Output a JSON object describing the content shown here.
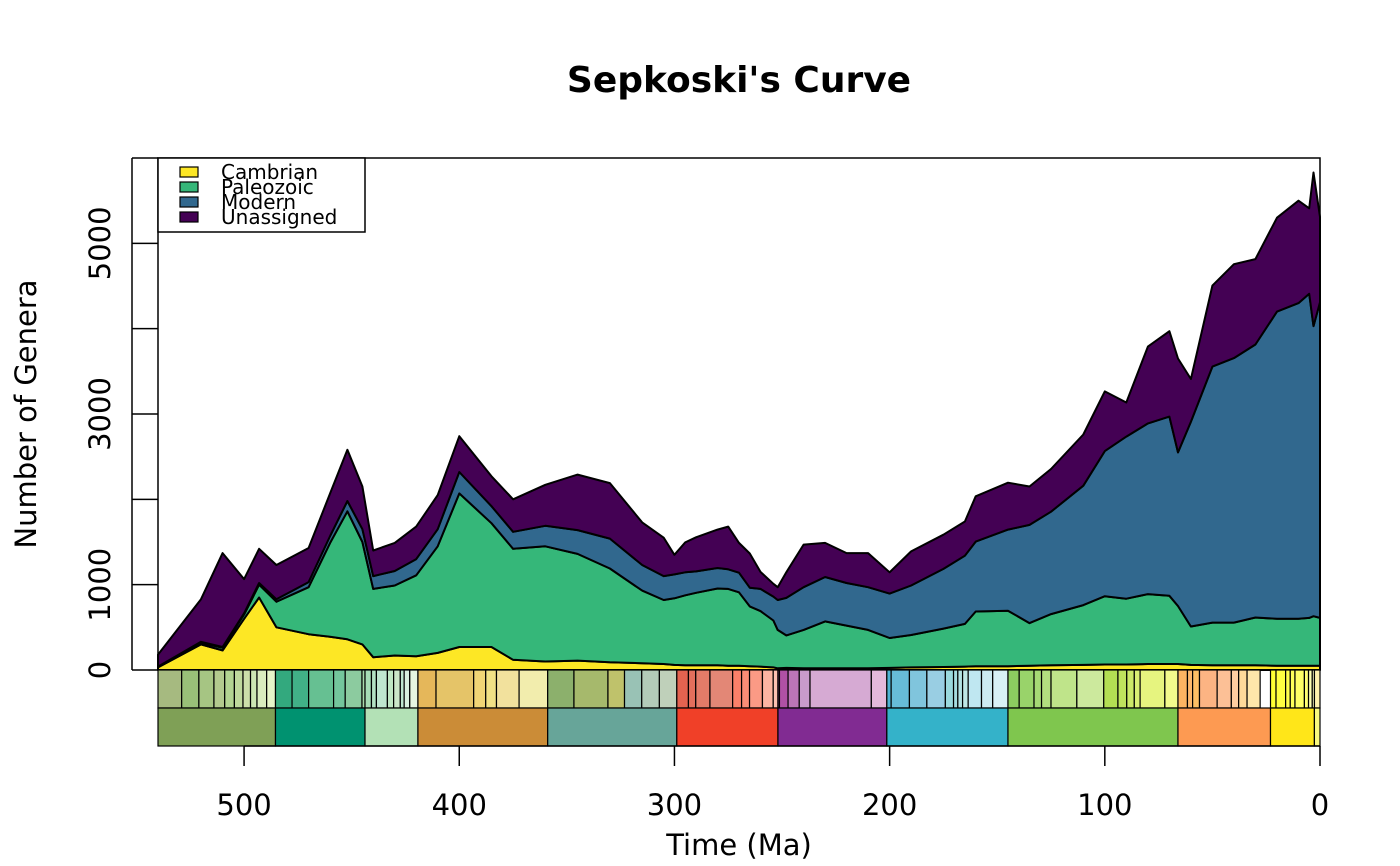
{
  "chart_data": {
    "type": "area",
    "stacked": true,
    "title": "Sepkoski's Curve",
    "xlabel": "Time (Ma)",
    "ylabel": "Number of Genera",
    "xlim": [
      540,
      0
    ],
    "ylim": [
      0,
      6000
    ],
    "x_ticks": [
      "500",
      "400",
      "300",
      "200",
      "100",
      "0"
    ],
    "y_ticks": [
      "0",
      "1000",
      "3000",
      "5000"
    ],
    "grid": false,
    "legend_position": "top-left",
    "x": [
      540,
      520,
      510,
      500,
      493,
      485,
      470,
      460,
      452,
      445,
      440,
      430,
      420,
      410,
      400,
      385,
      375,
      360,
      345,
      330,
      315,
      305,
      300,
      295,
      290,
      280,
      275,
      270,
      265,
      260,
      254,
      252,
      248,
      240,
      230,
      220,
      210,
      200,
      190,
      175,
      165,
      160,
      145,
      135,
      125,
      110,
      100,
      90,
      80,
      70,
      66,
      60,
      50,
      40,
      30,
      20,
      10,
      5,
      3,
      0
    ],
    "series": [
      {
        "name": "Cambrian",
        "color": "#fde725",
        "values": [
          30,
          300,
          230,
          600,
          850,
          500,
          420,
          390,
          360,
          300,
          150,
          170,
          160,
          200,
          270,
          270,
          120,
          100,
          110,
          90,
          80,
          70,
          60,
          55,
          55,
          55,
          50,
          50,
          45,
          40,
          30,
          20,
          25,
          20,
          20,
          20,
          20,
          25,
          30,
          35,
          40,
          45,
          45,
          50,
          55,
          60,
          65,
          65,
          70,
          70,
          70,
          60,
          55,
          55,
          55,
          50,
          50,
          50,
          50,
          50
        ]
      },
      {
        "name": "Paleozoic",
        "color": "#35b779",
        "values": [
          5,
          20,
          30,
          50,
          150,
          300,
          550,
          1100,
          1500,
          1200,
          800,
          820,
          950,
          1250,
          1800,
          1450,
          1300,
          1350,
          1250,
          1100,
          850,
          750,
          780,
          820,
          850,
          900,
          900,
          860,
          700,
          650,
          550,
          450,
          380,
          450,
          550,
          500,
          450,
          350,
          380,
          450,
          500,
          640,
          650,
          500,
          600,
          700,
          800,
          770,
          820,
          800,
          680,
          450,
          500,
          500,
          560,
          550,
          550,
          560,
          580,
          560
        ]
      },
      {
        "name": "Modern",
        "color": "#31688e",
        "values": [
          5,
          10,
          10,
          15,
          20,
          30,
          60,
          80,
          120,
          150,
          150,
          170,
          190,
          200,
          250,
          200,
          200,
          240,
          280,
          350,
          300,
          280,
          280,
          270,
          250,
          240,
          230,
          230,
          220,
          260,
          280,
          350,
          440,
          500,
          520,
          500,
          500,
          520,
          580,
          700,
          800,
          820,
          950,
          1150,
          1200,
          1400,
          1700,
          1900,
          2000,
          2100,
          1800,
          2400,
          3000,
          3100,
          3200,
          3600,
          3700,
          3800,
          3400,
          3700
        ]
      },
      {
        "name": "Unassigned",
        "color": "#440154",
        "values": [
          140,
          500,
          1100,
          400,
          400,
          400,
          400,
          500,
          600,
          500,
          300,
          330,
          380,
          400,
          420,
          350,
          380,
          480,
          650,
          650,
          500,
          450,
          230,
          350,
          400,
          450,
          500,
          350,
          400,
          200,
          150,
          150,
          300,
          500,
          400,
          350,
          400,
          250,
          400,
          400,
          400,
          530,
          550,
          450,
          500,
          600,
          700,
          400,
          900,
          1000,
          1100,
          500,
          950,
          1100,
          1000,
          1100,
          1200,
          1000,
          1800,
          1000
        ]
      }
    ],
    "timescale": {
      "periods": [
        {
          "color": "#7fa056",
          "start": 541,
          "end": 485.4
        },
        {
          "color": "#009270",
          "start": 485.4,
          "end": 443.8
        },
        {
          "color": "#b3e1b6",
          "start": 443.8,
          "end": 419.2
        },
        {
          "color": "#cb8c37",
          "start": 419.2,
          "end": 358.9
        },
        {
          "color": "#67a599",
          "start": 358.9,
          "end": 298.9
        },
        {
          "color": "#f04028",
          "start": 298.9,
          "end": 251.9
        },
        {
          "color": "#812b92",
          "start": 251.9,
          "end": 201.3
        },
        {
          "color": "#34b2c9",
          "start": 201.3,
          "end": 145
        },
        {
          "color": "#7fc64e",
          "start": 145,
          "end": 66
        },
        {
          "color": "#fd9a52",
          "start": 66,
          "end": 23
        },
        {
          "color": "#ffe619",
          "start": 23,
          "end": 2.6
        },
        {
          "color": "#f9f97f",
          "start": 2.6,
          "end": 0
        }
      ],
      "stages": [
        {
          "color": "#a6ba80",
          "start": 541,
          "end": 529
        },
        {
          "color": "#99c078",
          "start": 529,
          "end": 521
        },
        {
          "color": "#a6c583",
          "start": 521,
          "end": 514
        },
        {
          "color": "#b3ca8e",
          "start": 514,
          "end": 509
        },
        {
          "color": "#b3d492",
          "start": 509,
          "end": 504.5
        },
        {
          "color": "#bfd99d",
          "start": 504.5,
          "end": 500.5
        },
        {
          "color": "#ccdfaa",
          "start": 500.5,
          "end": 497
        },
        {
          "color": "#cce6b3",
          "start": 497,
          "end": 494
        },
        {
          "color": "#d9ecbe",
          "start": 494,
          "end": 489.5
        },
        {
          "color": "#e6f5c9",
          "start": 489.5,
          "end": 485.4
        },
        {
          "color": "#33a97e",
          "start": 485.4,
          "end": 477.7
        },
        {
          "color": "#41b087",
          "start": 477.7,
          "end": 470
        },
        {
          "color": "#66c092",
          "start": 470,
          "end": 458.4
        },
        {
          "color": "#74c69c",
          "start": 458.4,
          "end": 453
        },
        {
          "color": "#8ccb9f",
          "start": 453,
          "end": 445.2
        },
        {
          "color": "#a6dbab",
          "start": 445.2,
          "end": 443.8
        },
        {
          "color": "#a6dcb5",
          "start": 443.8,
          "end": 440.8
        },
        {
          "color": "#b3e1c2",
          "start": 440.8,
          "end": 438.5
        },
        {
          "color": "#bfe6cf",
          "start": 438.5,
          "end": 433.4
        },
        {
          "color": "#bfe6c3",
          "start": 433.4,
          "end": 430.5
        },
        {
          "color": "#cce6c9",
          "start": 430.5,
          "end": 427.4
        },
        {
          "color": "#bfe6cf",
          "start": 427.4,
          "end": 425.6
        },
        {
          "color": "#d9f0df",
          "start": 425.6,
          "end": 423
        },
        {
          "color": "#e6f5e1",
          "start": 423,
          "end": 419.2
        },
        {
          "color": "#e5b75a",
          "start": 419.2,
          "end": 410.8
        },
        {
          "color": "#e5c468",
          "start": 410.8,
          "end": 393.3
        },
        {
          "color": "#f1d576",
          "start": 393.3,
          "end": 387.7
        },
        {
          "color": "#f1e185",
          "start": 387.7,
          "end": 382.7
        },
        {
          "color": "#f2e19d",
          "start": 382.7,
          "end": 372.2
        },
        {
          "color": "#f2edad",
          "start": 372.2,
          "end": 358.9
        },
        {
          "color": "#8cb06c",
          "start": 358.9,
          "end": 346.7
        },
        {
          "color": "#a6b96c",
          "start": 346.7,
          "end": 330.9
        },
        {
          "color": "#bfc26b",
          "start": 330.9,
          "end": 323.2
        },
        {
          "color": "#99c2b5",
          "start": 323.2,
          "end": 315.2
        },
        {
          "color": "#b3cbb9",
          "start": 315.2,
          "end": 307
        },
        {
          "color": "#bfd0ba",
          "start": 307,
          "end": 298.9
        },
        {
          "color": "#e36350",
          "start": 298.9,
          "end": 293.5
        },
        {
          "color": "#e36f5c",
          "start": 293.5,
          "end": 290.1
        },
        {
          "color": "#e37b68",
          "start": 290.1,
          "end": 283.5
        },
        {
          "color": "#e38776",
          "start": 283.5,
          "end": 272.95
        },
        {
          "color": "#fb8069",
          "start": 272.95,
          "end": 268.8
        },
        {
          "color": "#fb8d76",
          "start": 268.8,
          "end": 265.1
        },
        {
          "color": "#fb9a85",
          "start": 265.1,
          "end": 259.1
        },
        {
          "color": "#fcb4a2",
          "start": 259.1,
          "end": 254.1
        },
        {
          "color": "#fcc0b2",
          "start": 254.1,
          "end": 251.9
        },
        {
          "color": "#a4469f",
          "start": 251.9,
          "end": 251.2
        },
        {
          "color": "#b051a5",
          "start": 251.2,
          "end": 247.2
        },
        {
          "color": "#bc75b7",
          "start": 247.2,
          "end": 242
        },
        {
          "color": "#c99bcb",
          "start": 242,
          "end": 237
        },
        {
          "color": "#d6aad3",
          "start": 237,
          "end": 208.5
        },
        {
          "color": "#e3b9db",
          "start": 208.5,
          "end": 201.3
        },
        {
          "color": "#4eb3d3",
          "start": 201.3,
          "end": 199.3
        },
        {
          "color": "#67bcd8",
          "start": 199.3,
          "end": 190.8
        },
        {
          "color": "#80c5dd",
          "start": 190.8,
          "end": 182.7
        },
        {
          "color": "#99cee3",
          "start": 182.7,
          "end": 174.1
        },
        {
          "color": "#9ad9dd",
          "start": 174.1,
          "end": 170.3
        },
        {
          "color": "#a6dde0",
          "start": 170.3,
          "end": 168.3
        },
        {
          "color": "#b3e2e3",
          "start": 168.3,
          "end": 166.1
        },
        {
          "color": "#bfe7e5",
          "start": 166.1,
          "end": 163.5
        },
        {
          "color": "#bfe7f1",
          "start": 163.5,
          "end": 157.3
        },
        {
          "color": "#cceaf1",
          "start": 157.3,
          "end": 152.1
        },
        {
          "color": "#d9f1f7",
          "start": 152.1,
          "end": 145
        },
        {
          "color": "#8ccd60",
          "start": 145,
          "end": 139.8
        },
        {
          "color": "#99d36a",
          "start": 139.8,
          "end": 132.9
        },
        {
          "color": "#a6d975",
          "start": 132.9,
          "end": 129.4
        },
        {
          "color": "#b3df7f",
          "start": 129.4,
          "end": 125
        },
        {
          "color": "#bfe48a",
          "start": 125,
          "end": 113
        },
        {
          "color": "#cce99d",
          "start": 113,
          "end": 100.5
        },
        {
          "color": "#b3de53",
          "start": 100.5,
          "end": 93.9
        },
        {
          "color": "#bfe35d",
          "start": 93.9,
          "end": 89.8
        },
        {
          "color": "#cce968",
          "start": 89.8,
          "end": 86.3
        },
        {
          "color": "#d9ef74",
          "start": 86.3,
          "end": 83.6
        },
        {
          "color": "#e6f47f",
          "start": 83.6,
          "end": 72.1
        },
        {
          "color": "#f2fa8c",
          "start": 72.1,
          "end": 66
        },
        {
          "color": "#fdb462",
          "start": 66,
          "end": 61.6
        },
        {
          "color": "#feb86c",
          "start": 61.6,
          "end": 59.2
        },
        {
          "color": "#febf65",
          "start": 59.2,
          "end": 56
        },
        {
          "color": "#fcb483",
          "start": 56,
          "end": 47.8
        },
        {
          "color": "#fcc096",
          "start": 47.8,
          "end": 41.2
        },
        {
          "color": "#fdcda1",
          "start": 41.2,
          "end": 37.8
        },
        {
          "color": "#fed99a",
          "start": 37.8,
          "end": 33.9
        },
        {
          "color": "#fee6aa",
          "start": 33.9,
          "end": 27.82
        },
        {
          "color": "#ffff33",
          "start": 23,
          "end": 20.44
        },
        {
          "color": "#ffff41",
          "start": 20.44,
          "end": 15.97
        },
        {
          "color": "#ffff4d",
          "start": 15.97,
          "end": 13.82
        },
        {
          "color": "#ffff59",
          "start": 13.82,
          "end": 11.63
        },
        {
          "color": "#ffff66",
          "start": 11.63,
          "end": 7.25
        },
        {
          "color": "#ffff73",
          "start": 7.25,
          "end": 5.33
        },
        {
          "color": "#ffffb3",
          "start": 5.33,
          "end": 3.6
        },
        {
          "color": "#ffffbf",
          "start": 3.6,
          "end": 2.58
        },
        {
          "color": "#fff2ae",
          "start": 2.58,
          "end": 0
        }
      ]
    }
  }
}
